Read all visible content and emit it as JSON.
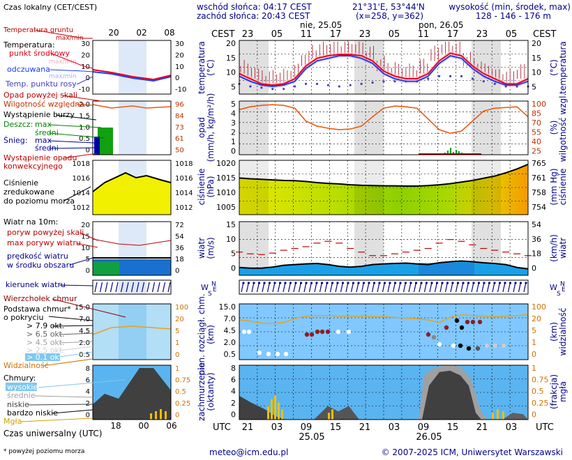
{
  "header": {
    "sunrise": "wschód słońca: 04:17 CEST",
    "sunset": "zachód słońca: 20:43 CEST",
    "coords": "21°31'E, 53°44'N",
    "grid": "(x=258,  y=362)",
    "altitude_title": "wysokość (min, środek, max)",
    "altitude_values": "128 - 146 - 176 m",
    "cest": "CEST",
    "day1": "nie, 25.05",
    "day2": "pon, 26.05"
  },
  "legend": {
    "local_time": "Czas lokalny\n(CET/CEST)",
    "ground_temp": "Temperatura gruntu\nmax/min",
    "temperature": "Temperatura:",
    "mid_point": "punkt środkowy",
    "max_min": "max/min",
    "perceived": "odczuwana",
    "perceived_max_min": "max/min",
    "dew_point": "Temp. punktu rosy",
    "precip_over": "Opad powyżej skali",
    "humidity": "Wilgotność względna",
    "storm": "Wystąpienie burzy",
    "rain": "Deszcz:",
    "rain_max": "max",
    "rain_mid": "średni",
    "snow": "Śnieg:",
    "snow_max": "max",
    "snow_mid": "średni",
    "conv_precip": "Wystąpienie opadu\nkonwekcyjnego",
    "pressure": "Ciśnienie\nzredukowane\ndo poziomu morza",
    "wind_title": "Wiatr na 10m:",
    "gust_over": "poryw powyżej skali",
    "gust_max": "max porywy wiatru",
    "wind_speed": "prędkość wiatru\nw środku obszaru",
    "wind_dir": "kierunek wiatru",
    "cloud_top": "Wierzchołek chmur",
    "cloud_base": "Podstawa chmur*\no pokryciu",
    "okt_79": "> 7.9 okt.",
    "okt_65": "> 6.5 okt.",
    "okt_45": "> 4.5 okt.",
    "okt_25": "> 2.5 okt.",
    "okt_01": "> 0.1 okt.",
    "visibility": "Widzialność",
    "clouds": "Chmury:",
    "clouds_high": "wysokie",
    "clouds_mid": "średnie",
    "clouds_low": "niskie",
    "clouds_vlow": "bardzo niskie",
    "fog": "Mgła",
    "utc": "Czas uniwersalny (UTC)",
    "footnote": "* powyżej poziomu morza"
  },
  "axis_labels": {
    "temp": "temperatura\n(°C)",
    "temp_r": "(°C)\ntemperatura",
    "precip": "opad\n(mm/h, kg/m²/h)",
    "humidity": "(%)\nwilgotność wzgl.",
    "pressure": "ciśnienie\n(hPa)",
    "pressure_r": "(mm Hg)\nciśnienie",
    "wind": "wiatr\n(m/s)",
    "wind_r": "(km/h)\nwiatr",
    "cloud_base": "pion. rozciągł. chm.\n(km)",
    "visibility": "(km)\nwidzialność",
    "cloudcover": "zachmurzenie\n(oktanty)",
    "fog": "(frakcja)\nmgła",
    "utc": "UTC",
    "date1": "25.05",
    "date2": "26.05"
  },
  "footer": {
    "email": "meteo@icm.edu.pl",
    "copyright": "© 2007-2025 ICM, Uniwersytet Warszawski"
  },
  "colors": {
    "temp": "#e8001c",
    "perceived": "#1a3cff",
    "humidity": "#e85a10",
    "pressure_fill": "#d6e600",
    "wind_fill": "#1aa0e8",
    "cloud_band": "#80c8ff",
    "grid_shade": "#e0e0e0"
  },
  "chart_data": {
    "type": "line",
    "hours_local": [
      "23",
      "05",
      "11",
      "17",
      "23",
      "05",
      "11",
      "17",
      "23",
      "05"
    ],
    "hours_utc": [
      "21",
      "03",
      "09",
      "15",
      "21",
      "03",
      "09",
      "15",
      "21",
      "03"
    ],
    "small_hours_local": [
      "20",
      "02",
      "08"
    ],
    "small_hours_utc": [
      "18",
      "00",
      "06"
    ],
    "temperature": {
      "ylim": [
        2,
        23
      ],
      "ticks_l": [
        "20",
        "15",
        "10",
        "5"
      ],
      "ticks_r": [
        "20",
        "15",
        "10",
        "5"
      ],
      "mid": [
        10,
        8,
        6,
        5.5,
        6,
        8,
        13,
        16,
        17,
        17.5,
        17.5,
        17,
        15,
        11,
        9,
        8,
        8,
        10,
        15,
        18,
        17,
        13,
        10,
        8,
        6,
        6,
        8
      ],
      "perceived": [
        9,
        7,
        5.5,
        5,
        5.5,
        7,
        12,
        15,
        16,
        17,
        17,
        16,
        14,
        10,
        8,
        7,
        7,
        9,
        14,
        17,
        16,
        12,
        9,
        7,
        5.5,
        5.5,
        7
      ],
      "dew": [
        6,
        5,
        4.5,
        4,
        4,
        5,
        6,
        6,
        5.5,
        5,
        5.5,
        6,
        6.5,
        7,
        7,
        7,
        7,
        8,
        9,
        9,
        9,
        8,
        7,
        6,
        5,
        5,
        5
      ],
      "small_ticks_l": [
        "30",
        "20",
        "10",
        "0",
        "-10"
      ],
      "small_ticks_r": [
        "30",
        "20",
        "10",
        "0",
        "-10"
      ]
    },
    "precip": {
      "ylim": [
        0,
        5
      ],
      "ticks_l": [
        "5",
        "4",
        "3",
        "2",
        "1",
        "0"
      ],
      "humidity_ticks": [
        "100",
        "85",
        "70",
        "55",
        "40",
        "25"
      ],
      "humidity": [
        88,
        92,
        94,
        95,
        94,
        90,
        72,
        65,
        62,
        60,
        61,
        65,
        78,
        90,
        93,
        92,
        90,
        75,
        60,
        55,
        58,
        72,
        86,
        90,
        91,
        92,
        78
      ],
      "small_ticks_l": [
        "2.0",
        "1.5",
        "1.0",
        "0.5",
        "0"
      ],
      "small_ticks_r": [
        "96",
        "84",
        "73",
        "61",
        "50"
      ]
    },
    "pressure": {
      "ylim": [
        1001,
        1021
      ],
      "ticks_l": [
        "1020",
        "1015",
        "1010",
        "1005"
      ],
      "ticks_r": [
        "765",
        "761",
        "758",
        "754"
      ],
      "values": [
        1014.5,
        1014.2,
        1014,
        1013.8,
        1013.6,
        1013.5,
        1013.2,
        1012.8,
        1012.5,
        1012.3,
        1012,
        1011.8,
        1011.7,
        1011.6,
        1011.6,
        1011.5,
        1011.5,
        1011.7,
        1012,
        1012.4,
        1013,
        1013.6,
        1014.4,
        1015.2,
        1016.4,
        1017.8,
        1019.5
      ],
      "small_ticks_l": [
        "1018",
        "1016",
        "1014",
        "1012"
      ],
      "small_ticks_r": [
        "1018",
        "1016",
        "1014",
        "1012"
      ]
    },
    "wind": {
      "ylim": [
        0,
        15
      ],
      "ticks_l": [
        "15",
        "10",
        "5",
        "0"
      ],
      "ticks_r": [
        "54",
        "36",
        "18",
        "0"
      ],
      "speed": [
        2.2,
        2,
        2,
        2.3,
        2.8,
        3,
        3.2,
        3.3,
        3,
        2.5,
        2.3,
        2.5,
        3,
        3.2,
        3.3,
        3.4,
        3.2,
        3,
        3.5,
        3.8,
        4,
        3.8,
        3.5,
        3.3,
        3,
        2.2,
        1.8
      ],
      "gust": [
        6.5,
        6,
        5.8,
        6.2,
        7,
        7.5,
        8,
        9,
        9.5,
        9,
        7.5,
        6.5,
        5.5,
        5.5,
        6,
        6.5,
        7,
        7.5,
        9,
        10,
        9.5,
        8.5,
        7.5,
        7,
        6.5,
        6,
        5.5
      ],
      "small_ticks_l": [
        "20",
        "15",
        "10",
        "5",
        "0"
      ],
      "small_ticks_r": [
        "72",
        "54",
        "36",
        "18",
        "0"
      ]
    },
    "cloud_base": {
      "ylim": [
        0,
        15
      ],
      "ticks_l": [
        "15.0",
        "7.0",
        "4.5",
        "2.0",
        "0.5"
      ],
      "ticks_r": [
        "100",
        "20",
        "5",
        "1",
        "0"
      ]
    },
    "cloudcover": {
      "ylim": [
        0,
        8
      ],
      "ticks_l": [
        "8",
        "6",
        "4",
        "2",
        "0"
      ],
      "ticks_r": [
        "1",
        "0.75",
        "0.5",
        "0.25",
        "0"
      ]
    }
  }
}
